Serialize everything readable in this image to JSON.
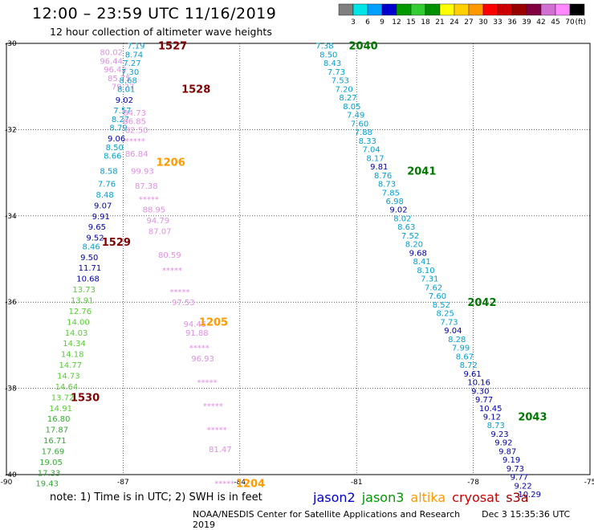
{
  "header": {
    "title": "12:00 – 23:59 UTC 11/16/2019",
    "subtitle": "12 hour collection of altimeter wave heights"
  },
  "footer": {
    "note": "note: 1) Time is in UTC; 2) SWH is in feet",
    "credit": "NOAA/NESDIS Center for Satellite Applications and Research",
    "timestamp": "Dec  3 15:35:36 UTC 2019"
  },
  "satellites": [
    {
      "name": "jason2",
      "color": "#0000cc"
    },
    {
      "name": "jason3",
      "color": "#009900"
    },
    {
      "name": "altika",
      "color": "#ff9900"
    },
    {
      "name": "cryosat",
      "color": "#cc0000"
    },
    {
      "name": "s3a",
      "color": "#990000"
    }
  ],
  "chart_data": {
    "type": "scatter",
    "xlim": [
      -90,
      -75
    ],
    "ylim": [
      -40,
      -30
    ],
    "x_ticks": [
      -90,
      -87,
      -84,
      -81,
      -78,
      -75
    ],
    "y_ticks": [
      -30,
      -32,
      -34,
      -36,
      -38,
      -40
    ],
    "color_scale": {
      "unit": "(ft)",
      "breaks": [
        "3",
        "6",
        "9",
        "12",
        "15",
        "18",
        "21",
        "24",
        "27",
        "30",
        "33",
        "36",
        "39",
        "42",
        "45",
        "70"
      ],
      "colors": [
        "#808080",
        "#00e5e5",
        "#00a0ff",
        "#0000cc",
        "#009900",
        "#33cc33",
        "#009000",
        "#ffff00",
        "#ffd000",
        "#ff9900",
        "#ff0000",
        "#cc0000",
        "#990000",
        "#800040",
        "#d070d0",
        "#ff88ff",
        "#000000"
      ]
    },
    "tracks": [
      {
        "label": "1527",
        "label_color": "#800000",
        "label_lon": -86.1,
        "label_lat": -30.05,
        "points": [
          {
            "lon": -86.9,
            "lat": -30.05,
            "v": "7.19",
            "c": "#00a0d0"
          },
          {
            "lon": -87.6,
            "lat": -30.2,
            "v": "80.02",
            "c": "#e090e0"
          },
          {
            "lon": -86.95,
            "lat": -30.25,
            "v": "8.74",
            "c": "#00a0d0"
          },
          {
            "lon": -87.6,
            "lat": -30.4,
            "v": "96.44",
            "c": "#e090e0"
          },
          {
            "lon": -87.0,
            "lat": -30.45,
            "v": "7.27",
            "c": "#00a0d0"
          },
          {
            "lon": -87.5,
            "lat": -30.6,
            "v": "96.42",
            "c": "#e090e0"
          },
          {
            "lon": -87.05,
            "lat": -30.65,
            "v": "7.30",
            "c": "#00a0d0"
          },
          {
            "lon": -87.4,
            "lat": -30.8,
            "v": "85.75",
            "c": "#e090e0"
          },
          {
            "lon": -87.1,
            "lat": -30.85,
            "v": "8.68",
            "c": "#00a0d0"
          },
          {
            "lon": -87.3,
            "lat": -31.0,
            "v": "79.27",
            "c": "#e090e0"
          },
          {
            "lon": -87.15,
            "lat": -31.05,
            "v": "8.01",
            "c": "#00a0d0"
          }
        ]
      },
      {
        "label": "1528",
        "label_color": "#800000",
        "label_lon": -85.5,
        "label_lat": -31.05,
        "points": [
          {
            "lon": -87.2,
            "lat": -31.3,
            "v": "9.02",
            "c": "#0000aa"
          },
          {
            "lon": -87.25,
            "lat": -31.55,
            "v": "7.57",
            "c": "#00a0d0"
          },
          {
            "lon": -87.0,
            "lat": -31.6,
            "v": "84.73",
            "c": "#e090e0"
          },
          {
            "lon": -87.3,
            "lat": -31.75,
            "v": "8.27",
            "c": "#00a0d0"
          },
          {
            "lon": -87.0,
            "lat": -31.8,
            "v": "86.85",
            "c": "#e090e0"
          },
          {
            "lon": -87.35,
            "lat": -31.95,
            "v": "8.79",
            "c": "#00a0d0"
          },
          {
            "lon": -86.95,
            "lat": -32.0,
            "v": "82.50",
            "c": "#e090e0"
          },
          {
            "lon": -87.4,
            "lat": -32.2,
            "v": "9.06",
            "c": "#0000aa"
          },
          {
            "lon": -86.95,
            "lat": -32.25,
            "v": "*****",
            "c": "#e090e0"
          },
          {
            "lon": -87.45,
            "lat": -32.4,
            "v": "8.50",
            "c": "#00a0d0"
          },
          {
            "lon": -86.95,
            "lat": -32.55,
            "v": "86.84",
            "c": "#e090e0"
          },
          {
            "lon": -87.5,
            "lat": -32.6,
            "v": "8.66",
            "c": "#00a0d0"
          },
          {
            "lon": -87.6,
            "lat": -32.95,
            "v": "8.58",
            "c": "#00a0d0"
          },
          {
            "lon": -86.8,
            "lat": -32.95,
            "v": "99.93",
            "c": "#e090e0"
          },
          {
            "lon": -87.65,
            "lat": -33.25,
            "v": "7.76",
            "c": "#00a0d0"
          },
          {
            "lon": -86.7,
            "lat": -33.3,
            "v": "87.38",
            "c": "#e090e0"
          },
          {
            "lon": -87.7,
            "lat": -33.5,
            "v": "8.48",
            "c": "#00a0d0"
          },
          {
            "lon": -86.6,
            "lat": -33.6,
            "v": "*****",
            "c": "#e090e0"
          },
          {
            "lon": -87.75,
            "lat": -33.75,
            "v": "9.07",
            "c": "#0000aa"
          },
          {
            "lon": -86.5,
            "lat": -33.85,
            "v": "88.95",
            "c": "#e090e0"
          },
          {
            "lon": -87.8,
            "lat": -34.0,
            "v": "9.91",
            "c": "#0000aa"
          },
          {
            "lon": -86.4,
            "lat": -34.1,
            "v": "94.79",
            "c": "#e090e0"
          },
          {
            "lon": -87.9,
            "lat": -34.25,
            "v": "9.65",
            "c": "#0000aa"
          },
          {
            "lon": -86.35,
            "lat": -34.35,
            "v": "87.07",
            "c": "#e090e0"
          },
          {
            "lon": -87.95,
            "lat": -34.5,
            "v": "9.52",
            "c": "#0000aa"
          }
        ]
      },
      {
        "label": "1206",
        "label_color": "#ff9900",
        "label_lon": -86.15,
        "label_lat": -32.75,
        "points": []
      },
      {
        "label": "1529",
        "label_color": "#800000",
        "label_lon": -87.55,
        "label_lat": -34.6,
        "points": [
          {
            "lon": -88.05,
            "lat": -34.7,
            "v": "8.46",
            "c": "#00a0d0"
          },
          {
            "lon": -86.1,
            "lat": -34.9,
            "v": "80.59",
            "c": "#e090e0"
          },
          {
            "lon": -88.1,
            "lat": -34.95,
            "v": "9.50",
            "c": "#0000aa"
          },
          {
            "lon": -88.15,
            "lat": -35.2,
            "v": "11.71",
            "c": "#0000aa"
          },
          {
            "lon": -86.0,
            "lat": -35.25,
            "v": "*****",
            "c": "#e090e0"
          },
          {
            "lon": -88.2,
            "lat": -35.45,
            "v": "10.68",
            "c": "#0000aa"
          },
          {
            "lon": -88.3,
            "lat": -35.7,
            "v": "13.73",
            "c": "#55cc33"
          },
          {
            "lon": -85.8,
            "lat": -35.75,
            "v": "*****",
            "c": "#e090e0"
          },
          {
            "lon": -88.35,
            "lat": -35.95,
            "v": "13.91",
            "c": "#55cc33"
          },
          {
            "lon": -85.75,
            "lat": -36.0,
            "v": "97.53",
            "c": "#e090e0"
          },
          {
            "lon": -88.4,
            "lat": -36.2,
            "v": "12.76",
            "c": "#55cc33"
          },
          {
            "lon": -88.45,
            "lat": -36.45,
            "v": "14.00",
            "c": "#55cc33"
          },
          {
            "lon": -85.45,
            "lat": -36.5,
            "v": "94.45",
            "c": "#e090e0"
          },
          {
            "lon": -88.5,
            "lat": -36.7,
            "v": "14.03",
            "c": "#55cc33"
          },
          {
            "lon": -85.4,
            "lat": -36.7,
            "v": "91.88",
            "c": "#e090e0"
          },
          {
            "lon": -88.55,
            "lat": -36.95,
            "v": "14.34",
            "c": "#55cc33"
          },
          {
            "lon": -85.3,
            "lat": -37.05,
            "v": "*****",
            "c": "#e090e0"
          },
          {
            "lon": -88.6,
            "lat": -37.2,
            "v": "14.18",
            "c": "#55cc33"
          },
          {
            "lon": -85.25,
            "lat": -37.3,
            "v": "96.93",
            "c": "#e090e0"
          },
          {
            "lon": -88.65,
            "lat": -37.45,
            "v": "14.77",
            "c": "#55cc33"
          },
          {
            "lon": -88.7,
            "lat": -37.7,
            "v": "14.73",
            "c": "#55cc33"
          },
          {
            "lon": -85.1,
            "lat": -37.85,
            "v": "*****",
            "c": "#e090e0"
          },
          {
            "lon": -88.75,
            "lat": -37.95,
            "v": "14.64",
            "c": "#55cc33"
          },
          {
            "lon": -88.85,
            "lat": -38.2,
            "v": "13.72",
            "c": "#55cc33"
          }
        ]
      },
      {
        "label": "1205",
        "label_color": "#ff9900",
        "label_lon": -85.05,
        "label_lat": -36.45,
        "points": []
      },
      {
        "label": "1530",
        "label_color": "#800000",
        "label_lon": -88.35,
        "label_lat": -38.2,
        "points": [
          {
            "lon": -88.9,
            "lat": -38.45,
            "v": "14.91",
            "c": "#55cc33"
          },
          {
            "lon": -84.95,
            "lat": -38.4,
            "v": "*****",
            "c": "#e090e0"
          },
          {
            "lon": -88.95,
            "lat": -38.7,
            "v": "16.80",
            "c": "#33aa33"
          },
          {
            "lon": -89.0,
            "lat": -38.95,
            "v": "17.87",
            "c": "#33aa33"
          },
          {
            "lon": -84.85,
            "lat": -38.95,
            "v": "*****",
            "c": "#e090e0"
          },
          {
            "lon": -89.05,
            "lat": -39.2,
            "v": "16.71",
            "c": "#33aa33"
          },
          {
            "lon": -89.1,
            "lat": -39.45,
            "v": "17.69",
            "c": "#33aa33"
          },
          {
            "lon": -84.8,
            "lat": -39.4,
            "v": "81.47",
            "c": "#e090e0"
          },
          {
            "lon": -89.15,
            "lat": -39.7,
            "v": "19.05",
            "c": "#33aa33"
          },
          {
            "lon": -89.2,
            "lat": -39.95,
            "v": "17.33",
            "c": "#33aa33"
          },
          {
            "lon": -89.25,
            "lat": -40.2,
            "v": "19.43",
            "c": "#33aa33"
          },
          {
            "lon": -84.65,
            "lat": -40.2,
            "v": "*****",
            "c": "#e090e0"
          }
        ]
      },
      {
        "label": "1204",
        "label_color": "#ff9900",
        "label_lon": -84.1,
        "label_lat": -40.2,
        "points": []
      },
      {
        "label": "2040",
        "label_color": "#007700",
        "label_lon": -81.2,
        "label_lat": -30.05,
        "points": [
          {
            "lon": -82.05,
            "lat": -30.05,
            "v": "7.38",
            "c": "#00a0d0"
          },
          {
            "lon": -81.95,
            "lat": -30.25,
            "v": "8.50",
            "c": "#00a0d0"
          },
          {
            "lon": -81.85,
            "lat": -30.45,
            "v": "8.43",
            "c": "#00a0d0"
          },
          {
            "lon": -81.75,
            "lat": -30.65,
            "v": "7.73",
            "c": "#00a0d0"
          },
          {
            "lon": -81.65,
            "lat": -30.85,
            "v": "7.53",
            "c": "#00a0d0"
          },
          {
            "lon": -81.55,
            "lat": -31.05,
            "v": "7.20",
            "c": "#00a0d0"
          },
          {
            "lon": -81.45,
            "lat": -31.25,
            "v": "8.27",
            "c": "#00a0d0"
          },
          {
            "lon": -81.35,
            "lat": -31.45,
            "v": "8.05",
            "c": "#00a0d0"
          },
          {
            "lon": -81.25,
            "lat": -31.65,
            "v": "7.49",
            "c": "#00a0d0"
          },
          {
            "lon": -81.15,
            "lat": -31.85,
            "v": "7.60",
            "c": "#00a0d0"
          },
          {
            "lon": -81.05,
            "lat": -32.05,
            "v": "7.88",
            "c": "#00a0d0"
          },
          {
            "lon": -80.95,
            "lat": -32.25,
            "v": "8.33",
            "c": "#00a0d0"
          },
          {
            "lon": -80.85,
            "lat": -32.45,
            "v": "7.04",
            "c": "#00a0d0"
          },
          {
            "lon": -80.75,
            "lat": -32.65,
            "v": "8.17",
            "c": "#00a0d0"
          },
          {
            "lon": -80.65,
            "lat": -32.85,
            "v": "9.81",
            "c": "#0000aa"
          },
          {
            "lon": -80.55,
            "lat": -33.05,
            "v": "8.76",
            "c": "#00a0d0"
          }
        ]
      },
      {
        "label": "2041",
        "label_color": "#007700",
        "label_lon": -79.7,
        "label_lat": -32.95,
        "points": [
          {
            "lon": -80.45,
            "lat": -33.25,
            "v": "8.73",
            "c": "#00a0d0"
          },
          {
            "lon": -80.35,
            "lat": -33.45,
            "v": "7.85",
            "c": "#00a0d0"
          },
          {
            "lon": -80.25,
            "lat": -33.65,
            "v": "6.98",
            "c": "#00a0d0"
          },
          {
            "lon": -80.15,
            "lat": -33.85,
            "v": "9.02",
            "c": "#0000aa"
          },
          {
            "lon": -80.05,
            "lat": -34.05,
            "v": "8.02",
            "c": "#00a0d0"
          },
          {
            "lon": -79.95,
            "lat": -34.25,
            "v": "8.63",
            "c": "#00a0d0"
          },
          {
            "lon": -79.85,
            "lat": -34.45,
            "v": "7.52",
            "c": "#00a0d0"
          },
          {
            "lon": -79.75,
            "lat": -34.65,
            "v": "8.20",
            "c": "#00a0d0"
          },
          {
            "lon": -79.65,
            "lat": -34.85,
            "v": "9.68",
            "c": "#0000aa"
          },
          {
            "lon": -79.55,
            "lat": -35.05,
            "v": "8.41",
            "c": "#00a0d0"
          },
          {
            "lon": -79.45,
            "lat": -35.25,
            "v": "8.10",
            "c": "#00a0d0"
          },
          {
            "lon": -79.35,
            "lat": -35.45,
            "v": "7.31",
            "c": "#00a0d0"
          },
          {
            "lon": -79.25,
            "lat": -35.65,
            "v": "7.62",
            "c": "#00a0d0"
          },
          {
            "lon": -79.15,
            "lat": -35.85,
            "v": "7.60",
            "c": "#00a0d0"
          },
          {
            "lon": -79.05,
            "lat": -36.05,
            "v": "8.52",
            "c": "#00a0d0"
          },
          {
            "lon": -78.95,
            "lat": -36.25,
            "v": "8.25",
            "c": "#00a0d0"
          }
        ]
      },
      {
        "label": "2042",
        "label_color": "#007700",
        "label_lon": -78.15,
        "label_lat": -36.0,
        "points": [
          {
            "lon": -78.85,
            "lat": -36.45,
            "v": "7.73",
            "c": "#00a0d0"
          },
          {
            "lon": -78.75,
            "lat": -36.65,
            "v": "9.04",
            "c": "#0000aa"
          },
          {
            "lon": -78.65,
            "lat": -36.85,
            "v": "8.28",
            "c": "#00a0d0"
          },
          {
            "lon": -78.55,
            "lat": -37.05,
            "v": "7.99",
            "c": "#00a0d0"
          },
          {
            "lon": -78.45,
            "lat": -37.25,
            "v": "8.67",
            "c": "#00a0d0"
          },
          {
            "lon": -78.35,
            "lat": -37.45,
            "v": "8.72",
            "c": "#00a0d0"
          },
          {
            "lon": -78.25,
            "lat": -37.65,
            "v": "9.61",
            "c": "#0000aa"
          },
          {
            "lon": -78.15,
            "lat": -37.85,
            "v": "10.16",
            "c": "#0000aa"
          },
          {
            "lon": -78.05,
            "lat": -38.05,
            "v": "9.30",
            "c": "#0000aa"
          },
          {
            "lon": -77.95,
            "lat": -38.25,
            "v": "9.77",
            "c": "#0000aa"
          },
          {
            "lon": -77.85,
            "lat": -38.45,
            "v": "10.45",
            "c": "#0000aa"
          },
          {
            "lon": -77.75,
            "lat": -38.65,
            "v": "9.12",
            "c": "#0000aa"
          },
          {
            "lon": -77.65,
            "lat": -38.85,
            "v": "8.73",
            "c": "#00a0d0"
          }
        ]
      },
      {
        "label": "2043",
        "label_color": "#007700",
        "label_lon": -76.85,
        "label_lat": -38.65,
        "points": [
          {
            "lon": -77.55,
            "lat": -39.05,
            "v": "9.23",
            "c": "#0000aa"
          },
          {
            "lon": -77.45,
            "lat": -39.25,
            "v": "9.92",
            "c": "#0000aa"
          },
          {
            "lon": -77.35,
            "lat": -39.45,
            "v": "9.87",
            "c": "#0000aa"
          },
          {
            "lon": -77.25,
            "lat": -39.65,
            "v": "9.19",
            "c": "#0000aa"
          },
          {
            "lon": -77.15,
            "lat": -39.85,
            "v": "9.73",
            "c": "#0000aa"
          },
          {
            "lon": -77.05,
            "lat": -40.05,
            "v": "9.77",
            "c": "#0000aa"
          },
          {
            "lon": -76.95,
            "lat": -40.25,
            "v": "9.22",
            "c": "#0000aa"
          },
          {
            "lon": -76.85,
            "lat": -40.45,
            "v": "10.29",
            "c": "#0000aa"
          }
        ]
      }
    ]
  }
}
